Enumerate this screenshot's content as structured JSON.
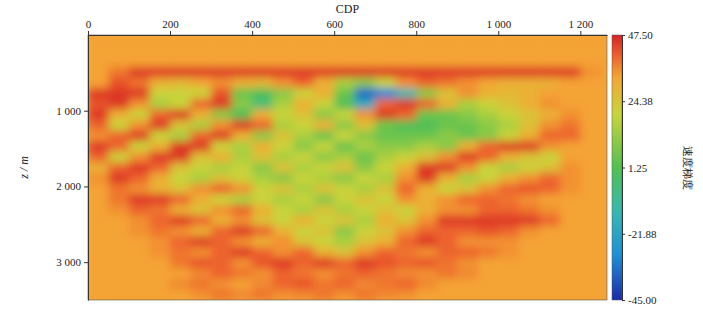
{
  "chart_data": {
    "type": "heatmap",
    "x_label": "CDP",
    "y_label": "z / m",
    "colorbar_label": "速度梯度",
    "xlim": [
      0,
      1265
    ],
    "ylim": [
      0,
      3500
    ],
    "xticks": [
      0,
      200,
      400,
      600,
      800,
      {
        "value": 1000,
        "label": "1 000"
      },
      {
        "value": 1200,
        "label": "1 200"
      }
    ],
    "yticks": [
      {
        "value": 1000,
        "label": "1 000"
      },
      {
        "value": 2000,
        "label": "2 000"
      },
      {
        "value": 3000,
        "label": "3 000"
      }
    ],
    "colorbar_range": [
      -45,
      47.5
    ],
    "colorbar_ticks": [
      {
        "value": 47.5,
        "label": "47.50"
      },
      {
        "value": 24.38,
        "label": "24.38"
      },
      {
        "value": 1.25,
        "label": "1.25"
      },
      {
        "value": -21.88,
        "label": "-21.88"
      },
      {
        "value": -45,
        "label": "-45.00"
      }
    ],
    "x": [
      25,
      75,
      125,
      175,
      225,
      275,
      325,
      375,
      425,
      475,
      525,
      575,
      625,
      675,
      725,
      775,
      825,
      875,
      925,
      975,
      1025,
      1075,
      1125,
      1175,
      1225,
      1275
    ],
    "y": [
      70,
      210,
      350,
      490,
      630,
      770,
      910,
      1050,
      1190,
      1330,
      1470,
      1610,
      1750,
      1890,
      2030,
      2170,
      2310,
      2450,
      2590,
      2730,
      2870,
      3010,
      3150,
      3290,
      3430
    ],
    "values": [
      [
        33,
        33,
        33,
        33,
        33,
        33,
        33,
        33,
        33,
        33,
        33,
        33,
        33,
        33,
        33,
        33,
        33,
        33,
        33,
        33,
        33,
        33,
        33,
        33,
        33,
        33
      ],
      [
        33,
        33,
        33,
        33,
        33,
        33,
        33,
        33,
        33,
        33,
        33,
        33,
        33,
        33,
        33,
        33,
        33,
        33,
        33,
        33,
        33,
        33,
        33,
        33,
        33,
        33
      ],
      [
        33,
        33,
        33,
        33,
        33,
        33,
        33,
        33,
        33,
        33,
        33,
        33,
        33,
        33,
        33,
        33,
        33,
        33,
        33,
        33,
        33,
        33,
        33,
        33,
        33,
        33
      ],
      [
        33,
        38,
        45,
        45,
        45,
        45,
        45,
        45,
        45,
        45,
        45,
        45,
        45,
        45,
        45,
        45,
        45,
        45,
        45,
        45,
        45,
        45,
        45,
        45,
        35,
        33
      ],
      [
        33,
        42,
        38,
        30,
        28,
        32,
        35,
        30,
        28,
        35,
        40,
        30,
        15,
        10,
        20,
        35,
        40,
        38,
        35,
        32,
        30,
        30,
        30,
        33,
        33,
        33
      ],
      [
        45,
        45,
        45,
        20,
        20,
        20,
        42,
        5,
        0,
        10,
        20,
        30,
        5,
        -35,
        -30,
        -15,
        10,
        25,
        35,
        30,
        28,
        30,
        33,
        33,
        33,
        33
      ],
      [
        42,
        45,
        35,
        15,
        20,
        40,
        45,
        10,
        -5,
        15,
        30,
        20,
        0,
        -20,
        40,
        45,
        40,
        30,
        15,
        20,
        25,
        30,
        35,
        33,
        33,
        33
      ],
      [
        45,
        30,
        20,
        40,
        45,
        30,
        10,
        0,
        30,
        20,
        25,
        10,
        20,
        35,
        45,
        40,
        5,
        5,
        10,
        15,
        20,
        25,
        30,
        35,
        33,
        33
      ],
      [
        40,
        20,
        35,
        45,
        25,
        15,
        35,
        45,
        40,
        15,
        20,
        30,
        10,
        25,
        5,
        0,
        0,
        5,
        5,
        10,
        15,
        25,
        35,
        38,
        33,
        33
      ],
      [
        35,
        40,
        45,
        20,
        15,
        40,
        45,
        30,
        10,
        25,
        15,
        5,
        20,
        10,
        5,
        5,
        5,
        10,
        5,
        10,
        20,
        30,
        40,
        40,
        33,
        33
      ],
      [
        45,
        40,
        20,
        30,
        45,
        45,
        20,
        15,
        30,
        20,
        10,
        20,
        5,
        15,
        10,
        10,
        15,
        10,
        30,
        40,
        45,
        45,
        35,
        33,
        33,
        33
      ],
      [
        40,
        20,
        35,
        45,
        45,
        25,
        30,
        15,
        25,
        15,
        20,
        10,
        15,
        5,
        15,
        20,
        25,
        35,
        45,
        40,
        30,
        25,
        20,
        33,
        33,
        33
      ],
      [
        30,
        40,
        45,
        40,
        25,
        20,
        15,
        20,
        10,
        25,
        15,
        20,
        25,
        10,
        20,
        30,
        45,
        45,
        35,
        20,
        15,
        20,
        25,
        35,
        33,
        33
      ],
      [
        35,
        45,
        40,
        30,
        20,
        15,
        25,
        20,
        15,
        10,
        20,
        15,
        10,
        20,
        15,
        35,
        45,
        30,
        15,
        20,
        30,
        35,
        40,
        35,
        33,
        33
      ],
      [
        33,
        38,
        35,
        30,
        25,
        35,
        40,
        35,
        20,
        25,
        15,
        25,
        20,
        15,
        25,
        40,
        30,
        20,
        25,
        35,
        40,
        42,
        40,
        35,
        33,
        33
      ],
      [
        33,
        38,
        45,
        45,
        40,
        30,
        20,
        15,
        20,
        15,
        20,
        10,
        20,
        25,
        20,
        35,
        30,
        35,
        40,
        40,
        38,
        35,
        33,
        33,
        33,
        33
      ],
      [
        33,
        35,
        40,
        38,
        30,
        25,
        35,
        40,
        30,
        20,
        15,
        25,
        15,
        20,
        25,
        20,
        30,
        35,
        35,
        40,
        40,
        38,
        35,
        33,
        33,
        33
      ],
      [
        33,
        33,
        35,
        40,
        45,
        40,
        30,
        35,
        25,
        20,
        30,
        20,
        25,
        15,
        30,
        25,
        35,
        45,
        45,
        45,
        45,
        45,
        40,
        33,
        33,
        33
      ],
      [
        33,
        33,
        35,
        38,
        35,
        30,
        40,
        45,
        40,
        30,
        20,
        25,
        10,
        20,
        25,
        35,
        40,
        40,
        40,
        42,
        40,
        35,
        33,
        33,
        33,
        33
      ],
      [
        33,
        33,
        33,
        35,
        40,
        45,
        40,
        35,
        30,
        35,
        25,
        20,
        15,
        25,
        30,
        40,
        45,
        40,
        35,
        35,
        35,
        33,
        33,
        33,
        33,
        33
      ],
      [
        33,
        33,
        33,
        35,
        38,
        35,
        40,
        45,
        40,
        35,
        40,
        30,
        25,
        35,
        40,
        38,
        35,
        40,
        40,
        38,
        35,
        33,
        33,
        33,
        33,
        33
      ],
      [
        33,
        33,
        33,
        33,
        38,
        42,
        40,
        35,
        42,
        45,
        40,
        45,
        40,
        45,
        42,
        40,
        42,
        38,
        35,
        33,
        33,
        33,
        33,
        33,
        33,
        33
      ],
      [
        33,
        33,
        33,
        33,
        33,
        36,
        40,
        38,
        35,
        40,
        38,
        35,
        38,
        40,
        38,
        36,
        35,
        38,
        36,
        33,
        33,
        33,
        33,
        33,
        33,
        33
      ],
      [
        33,
        33,
        33,
        33,
        36,
        38,
        35,
        33,
        36,
        40,
        42,
        38,
        40,
        36,
        38,
        40,
        36,
        33,
        33,
        33,
        33,
        33,
        33,
        33,
        33,
        33
      ],
      [
        33,
        33,
        33,
        33,
        33,
        35,
        38,
        36,
        38,
        35,
        36,
        38,
        35,
        38,
        36,
        35,
        33,
        33,
        33,
        33,
        33,
        33,
        33,
        33,
        33,
        33
      ]
    ]
  }
}
